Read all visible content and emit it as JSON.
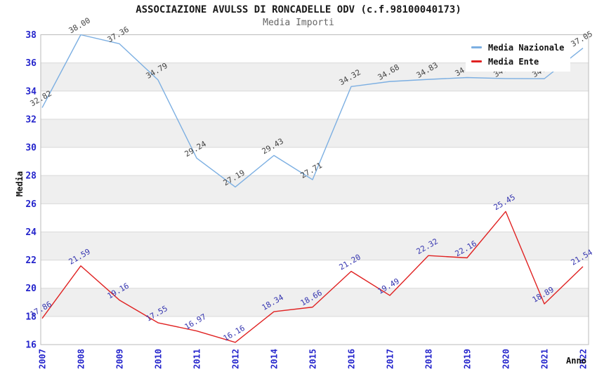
{
  "title": "ASSOCIAZIONE AVULSS DI RONCADELLE ODV (c.f.98100040173)",
  "subtitle": "Media Importi",
  "legend": {
    "items": [
      {
        "label": "Media Nazionale",
        "color": "#7cafe2"
      },
      {
        "label": "Media Ente",
        "color": "#e02222"
      }
    ]
  },
  "colors": {
    "national_line": "#7cafe2",
    "ente_line": "#e02222",
    "axis_text": "#2525cc",
    "national_data_label": "#444444",
    "ente_data_label": "#3636b0",
    "gridline": "#d9d9d9",
    "plot_border": "#bbbbbb",
    "band_gray": "#efefef"
  },
  "chart_data": {
    "type": "line",
    "title": "ASSOCIAZIONE AVULSS DI RONCADELLE ODV (c.f.98100040173)",
    "subtitle": "Media Importi",
    "xlabel": "Anno",
    "ylabel": "Media",
    "x": [
      "2007",
      "2008",
      "2009",
      "2010",
      "2011",
      "2012",
      "2014",
      "2015",
      "2016",
      "2017",
      "2018",
      "2019",
      "2020",
      "2021",
      "2022"
    ],
    "series": [
      {
        "name": "Media Nazionale",
        "color": "#7cafe2",
        "label_color": "#444444",
        "values": [
          32.82,
          38.0,
          37.36,
          34.79,
          29.24,
          27.19,
          29.43,
          27.71,
          34.32,
          34.68,
          34.83,
          34.96,
          34.89,
          34.88,
          37.05
        ]
      },
      {
        "name": "Media Ente",
        "color": "#e02222",
        "label_color": "#3636b0",
        "values": [
          17.86,
          21.59,
          19.16,
          17.55,
          16.97,
          16.16,
          18.34,
          18.66,
          21.2,
          19.49,
          22.32,
          22.16,
          25.45,
          18.89,
          21.54
        ]
      }
    ],
    "ylim": [
      16,
      38
    ],
    "yticks": [
      16,
      18,
      20,
      22,
      24,
      26,
      28,
      30,
      32,
      34,
      36,
      38
    ],
    "gray_bands": [
      [
        18,
        20
      ],
      [
        22,
        24
      ],
      [
        26,
        28
      ],
      [
        30,
        32
      ],
      [
        34,
        36
      ]
    ],
    "grid": true,
    "legend_position": "top-right"
  }
}
